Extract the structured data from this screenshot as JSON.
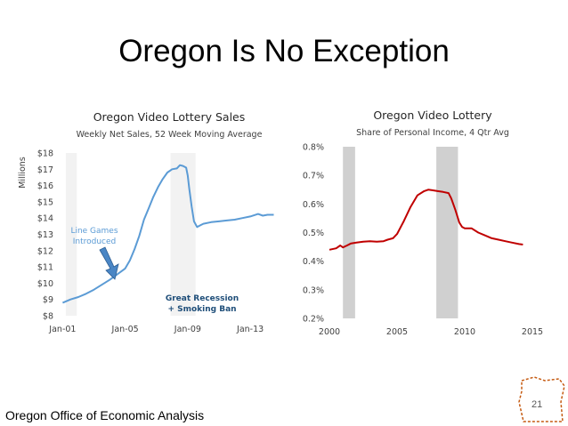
{
  "slide": {
    "title": "Oregon Is No Exception",
    "footer": "Oregon Office of Economic Analysis",
    "page_number": "21"
  },
  "colors": {
    "sales_line": "#5b9bd5",
    "share_line": "#c00000",
    "recession_left": "#f2f2f2",
    "recession_right": "#d0d0d0",
    "annotation": "#1f4e79",
    "arrow": "#4a86c5",
    "axis_text": "#404040"
  },
  "chart_data": [
    {
      "type": "line",
      "title": "Oregon Video Lottery Sales",
      "subtitle": "Weekly Net Sales, 52 Week Moving Average",
      "ylabel": "Millions",
      "xlabel": "",
      "ylim": [
        8,
        18
      ],
      "xlim": [
        2000.75,
        2015.1
      ],
      "yticks": [
        "$8",
        "$9",
        "$10",
        "$11",
        "$12",
        "$13",
        "$14",
        "$15",
        "$16",
        "$17",
        "$18"
      ],
      "xticks": [
        {
          "label": "Jan-01",
          "x": 2001
        },
        {
          "label": "Jan-05",
          "x": 2005
        },
        {
          "label": "Jan-09",
          "x": 2009
        },
        {
          "label": "Jan-13",
          "x": 2013
        }
      ],
      "shaded_periods": [
        [
          2001.2,
          2001.9
        ],
        [
          2007.9,
          2009.5
        ]
      ],
      "annotations": [
        {
          "text": [
            "Line Games",
            "Introduced"
          ]
        },
        {
          "text": [
            "Great Recession",
            "+ Smoking Ban"
          ]
        }
      ],
      "series": [
        {
          "name": "Weekly Net Sales",
          "x": [
            2001.0,
            2001.5,
            2002.0,
            2002.5,
            2003.0,
            2003.5,
            2004.0,
            2004.5,
            2005.0,
            2005.3,
            2005.6,
            2005.9,
            2006.2,
            2006.5,
            2006.8,
            2007.1,
            2007.4,
            2007.7,
            2008.0,
            2008.3,
            2008.5,
            2008.7,
            2008.9,
            2009.0,
            2009.1,
            2009.25,
            2009.4,
            2009.6,
            2009.8,
            2010.0,
            2010.5,
            2011.0,
            2011.5,
            2012.0,
            2012.5,
            2013.0,
            2013.5,
            2013.8,
            2014.1,
            2014.5
          ],
          "values": [
            8.8,
            9.0,
            9.15,
            9.35,
            9.6,
            9.9,
            10.2,
            10.55,
            10.9,
            11.4,
            12.1,
            12.9,
            13.9,
            14.6,
            15.3,
            15.9,
            16.4,
            16.8,
            17.0,
            17.05,
            17.25,
            17.2,
            17.1,
            16.6,
            15.8,
            14.7,
            13.8,
            13.45,
            13.55,
            13.65,
            13.75,
            13.8,
            13.85,
            13.9,
            14.0,
            14.1,
            14.25,
            14.15,
            14.2,
            14.2
          ]
        }
      ]
    },
    {
      "type": "line",
      "title": "Oregon Video Lottery",
      "subtitle": "Share of Personal Income, 4 Qtr Avg",
      "xlabel": "",
      "ylabel": "",
      "ylim": [
        0.2,
        0.8
      ],
      "xlim": [
        2000,
        2015
      ],
      "yticks": [
        "0.2%",
        "0.3%",
        "0.4%",
        "0.5%",
        "0.6%",
        "0.7%",
        "0.8%"
      ],
      "xticks": [
        {
          "label": "2000",
          "x": 2000
        },
        {
          "label": "2005",
          "x": 2005
        },
        {
          "label": "2010",
          "x": 2010
        },
        {
          "label": "2015",
          "x": 2015
        }
      ],
      "shaded_periods": [
        [
          2001.0,
          2001.9
        ],
        [
          2007.9,
          2009.5
        ]
      ],
      "series": [
        {
          "name": "Share of Personal Income",
          "x": [
            2000.0,
            2000.5,
            2000.8,
            2001.0,
            2001.3,
            2001.6,
            2002.0,
            2002.5,
            2003.0,
            2003.5,
            2004.0,
            2004.3,
            2004.7,
            2005.0,
            2005.5,
            2006.0,
            2006.5,
            2007.0,
            2007.3,
            2007.6,
            2008.0,
            2008.4,
            2008.8,
            2009.0,
            2009.3,
            2009.6,
            2009.8,
            2010.0,
            2010.5,
            2011.0,
            2011.5,
            2012.0,
            2012.5,
            2013.0,
            2013.5,
            2014.0,
            2014.3
          ],
          "values": [
            0.44,
            0.445,
            0.455,
            0.448,
            0.455,
            0.462,
            0.465,
            0.468,
            0.47,
            0.468,
            0.47,
            0.475,
            0.48,
            0.495,
            0.54,
            0.59,
            0.63,
            0.645,
            0.65,
            0.648,
            0.645,
            0.642,
            0.638,
            0.62,
            0.58,
            0.535,
            0.52,
            0.515,
            0.515,
            0.5,
            0.49,
            0.48,
            0.475,
            0.47,
            0.465,
            0.46,
            0.458
          ]
        }
      ]
    }
  ]
}
